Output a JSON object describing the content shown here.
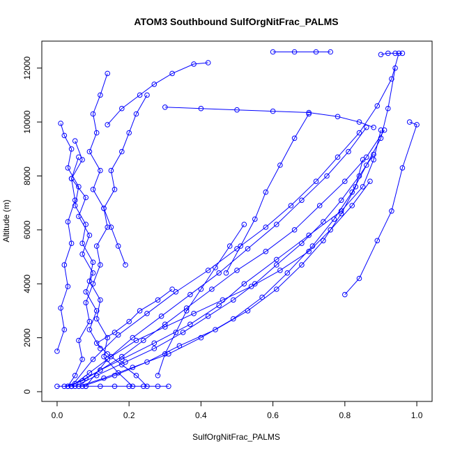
{
  "chart_data": {
    "type": "line",
    "title": "ATOM3 Southbound SulfOrgNitFrac_PALMS",
    "xlabel": "SulfOrgNitFrac_PALMS",
    "ylabel": "Altitude (m)",
    "xlim": [
      0,
      1
    ],
    "ylim": [
      0,
      12500
    ],
    "x_ticks": [
      0.0,
      0.2,
      0.4,
      0.6,
      0.8,
      1.0
    ],
    "x_tick_labels": [
      "0.0",
      "0.2",
      "0.4",
      "0.6",
      "0.8",
      "1.0"
    ],
    "y_ticks": [
      0,
      2000,
      4000,
      6000,
      8000,
      10000,
      12000
    ],
    "y_tick_labels": [
      "0",
      "2000",
      "4000",
      "6000",
      "8000",
      "10000",
      "12000"
    ],
    "grid": false,
    "legend": "none",
    "color": "#0000ff",
    "marker": "open-circle",
    "series": [
      {
        "x": [
          0.03,
          0.05,
          0.07,
          0.06,
          0.09,
          0.08,
          0.1,
          0.12,
          0.11,
          0.14,
          0.13,
          0.16,
          0.15,
          0.18,
          0.2,
          0.22,
          0.25
        ],
        "y": [
          200,
          600,
          1200,
          1900,
          2600,
          3300,
          4000,
          4700,
          5400,
          6100,
          6800,
          7500,
          8200,
          8900,
          9600,
          10300,
          11000
        ]
      },
      {
        "x": [
          0.01,
          0.02,
          0.04,
          0.03,
          0.06,
          0.05,
          0.08,
          0.07,
          0.1,
          0.09,
          0.12,
          0.11,
          0.14,
          0.13,
          0.17,
          0.21
        ],
        "y": [
          9950,
          9500,
          9000,
          8300,
          7600,
          6900,
          6200,
          5500,
          4800,
          4100,
          3400,
          2700,
          2000,
          1300,
          700,
          200
        ]
      },
      {
        "x": [
          0.02,
          0.05,
          0.08,
          0.12,
          0.18,
          0.27,
          0.37,
          0.45,
          0.52,
          0.61,
          0.7,
          0.79,
          0.85,
          0.88,
          0.9
        ],
        "y": [
          200,
          300,
          500,
          800,
          1200,
          1800,
          2500,
          3200,
          4000,
          4900,
          5800,
          6700,
          7600,
          8600,
          9700
        ]
      },
      {
        "x": [
          0.91,
          0.86,
          0.8,
          0.73,
          0.66,
          0.58,
          0.5,
          0.43,
          0.36,
          0.3,
          0.24,
          0.18,
          0.12,
          0.07,
          0.03
        ],
        "y": [
          9700,
          8700,
          7800,
          6900,
          6000,
          5200,
          4500,
          3800,
          3100,
          2500,
          1900,
          1300,
          800,
          400,
          200
        ]
      },
      {
        "x": [
          0.04,
          0.09,
          0.15,
          0.22,
          0.3,
          0.38,
          0.46,
          0.54,
          0.62,
          0.7,
          0.76,
          0.82,
          0.87
        ],
        "y": [
          200,
          700,
          1300,
          1900,
          2400,
          2900,
          3400,
          3900,
          4500,
          5200,
          6000,
          6900,
          7800
        ]
      },
      {
        "x": [
          0.88,
          0.84,
          0.79,
          0.74,
          0.68,
          0.61,
          0.55,
          0.49,
          0.42,
          0.35,
          0.27,
          0.19,
          0.11,
          0.05
        ],
        "y": [
          8800,
          8000,
          7100,
          6300,
          5500,
          4700,
          4000,
          3400,
          2800,
          2200,
          1600,
          1100,
          600,
          200
        ]
      },
      {
        "x": [
          0.06,
          0.13,
          0.21,
          0.31,
          0.4,
          0.49,
          0.57,
          0.64,
          0.71,
          0.77,
          0.82,
          0.86,
          0.9,
          0.92,
          0.94
        ],
        "y": [
          200,
          500,
          900,
          1400,
          2000,
          2700,
          3500,
          4400,
          5400,
          6400,
          7400,
          8400,
          9400,
          10500,
          12000
        ]
      },
      {
        "x": [
          0.95,
          0.93,
          0.89,
          0.84,
          0.78,
          0.72,
          0.65,
          0.58,
          0.5,
          0.42,
          0.33,
          0.25,
          0.17,
          0.1,
          0.04
        ],
        "y": [
          12550,
          11600,
          10600,
          9600,
          8700,
          7800,
          6900,
          6100,
          5300,
          4500,
          3700,
          2900,
          2100,
          1200,
          200
        ]
      },
      {
        "x": [
          0.07,
          0.16,
          0.25,
          0.34,
          0.44,
          0.53,
          0.61,
          0.68,
          0.74,
          0.79,
          0.83,
          0.85
        ],
        "y": [
          200,
          600,
          1100,
          1700,
          2300,
          3000,
          3800,
          4700,
          5600,
          6600,
          7600,
          8600
        ]
      },
      {
        "x": [
          0.86,
          0.81,
          0.75,
          0.68,
          0.61,
          0.53,
          0.45,
          0.37,
          0.29,
          0.21,
          0.14,
          0.08
        ],
        "y": [
          9800,
          8900,
          8000,
          7100,
          6200,
          5300,
          4400,
          3600,
          2800,
          2000,
          1200,
          200
        ]
      },
      {
        "x": [
          0.14,
          0.12,
          0.1,
          0.11,
          0.09,
          0.12,
          0.1,
          0.13,
          0.15,
          0.17,
          0.19
        ],
        "y": [
          11800,
          11000,
          10300,
          9600,
          8900,
          8200,
          7500,
          6800,
          6100,
          5400,
          4700
        ]
      },
      {
        "x": [
          0.05,
          0.07,
          0.04,
          0.08,
          0.06,
          0.09,
          0.07,
          0.1,
          0.08,
          0.11,
          0.09,
          0.12
        ],
        "y": [
          9300,
          8600,
          7900,
          7200,
          6500,
          5800,
          5100,
          4400,
          3700,
          3000,
          2300,
          1600
        ]
      },
      {
        "x": [
          0.0,
          0.02,
          0.01,
          0.03,
          0.02,
          0.04,
          0.03,
          0.05,
          0.04,
          0.06
        ],
        "y": [
          1500,
          2300,
          3100,
          3900,
          4700,
          5500,
          6300,
          7100,
          7900,
          8700
        ]
      },
      {
        "x": [
          0.25,
          0.22,
          0.18,
          0.14,
          0.11,
          0.16,
          0.2,
          0.23,
          0.28,
          0.32
        ],
        "y": [
          200,
          600,
          1000,
          1400,
          1800,
          2200,
          2600,
          3000,
          3400,
          3800
        ]
      },
      {
        "x": [
          0.0,
          0.04,
          0.08,
          0.12,
          0.16,
          0.2,
          0.24,
          0.28,
          0.31
        ],
        "y": [
          200,
          200,
          200,
          200,
          200,
          200,
          200,
          200,
          200
        ]
      },
      {
        "x": [
          0.3,
          0.4,
          0.5,
          0.6,
          0.7,
          0.78,
          0.84,
          0.88
        ],
        "y": [
          10550,
          10500,
          10450,
          10400,
          10350,
          10200,
          10000,
          9800
        ]
      },
      {
        "x": [
          0.6,
          0.66,
          0.72,
          0.76
        ],
        "y": [
          12600,
          12600,
          12600,
          12600
        ]
      },
      {
        "x": [
          0.9,
          0.92,
          0.94,
          0.96
        ],
        "y": [
          12500,
          12550,
          12550,
          12550
        ]
      },
      {
        "x": [
          0.42,
          0.38,
          0.32,
          0.27,
          0.23,
          0.18,
          0.14
        ],
        "y": [
          12200,
          12150,
          11800,
          11400,
          11000,
          10500,
          9900
        ]
      },
      {
        "x": [
          0.52,
          0.48,
          0.44,
          0.4,
          0.36,
          0.33,
          0.3,
          0.28
        ],
        "y": [
          6200,
          5400,
          4600,
          3800,
          3000,
          2200,
          1400,
          600
        ]
      },
      {
        "x": [
          0.7,
          0.66,
          0.62,
          0.58,
          0.55,
          0.51,
          0.47
        ],
        "y": [
          10300,
          9400,
          8400,
          7400,
          6400,
          5400,
          4400
        ]
      },
      {
        "x": [
          0.98,
          1.0,
          0.96,
          0.93,
          0.89,
          0.84,
          0.8
        ],
        "y": [
          10000,
          9900,
          8300,
          6700,
          5600,
          4200,
          3600
        ]
      }
    ]
  }
}
